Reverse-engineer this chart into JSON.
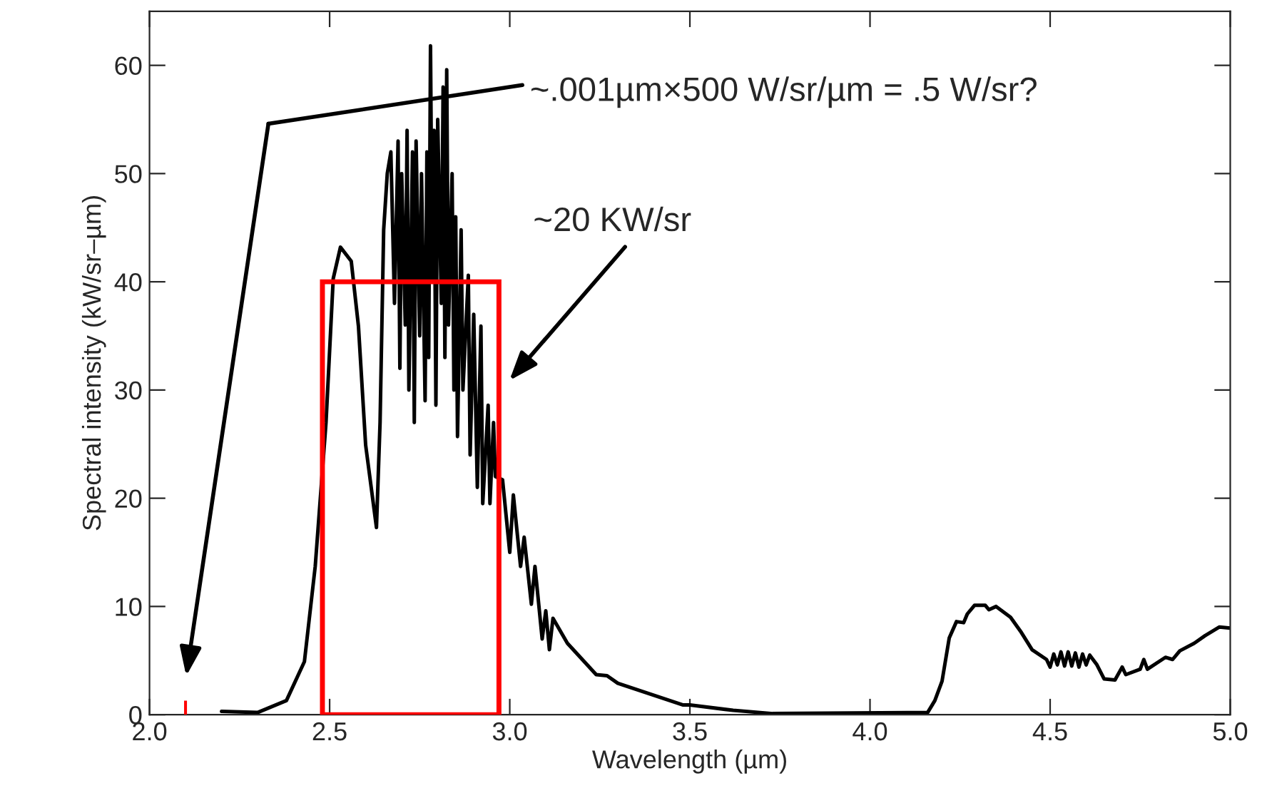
{
  "chart_data": {
    "type": "line",
    "xlabel": "Wavelength (µm)",
    "ylabel": "Spectral intensity (kW/sr–µm)",
    "xlim": [
      2.0,
      5.0
    ],
    "xticks": [
      {
        "value": 2.0,
        "label": "2.0"
      },
      {
        "value": 2.5,
        "label": "2.5"
      },
      {
        "value": 3.0,
        "label": "3.0"
      },
      {
        "value": 3.5,
        "label": "3.5"
      },
      {
        "value": 4.0,
        "label": "4.0"
      },
      {
        "value": 4.5,
        "label": "4.5"
      },
      {
        "value": 5.0,
        "label": "5.0"
      }
    ],
    "ylim": [
      0,
      65
    ],
    "yticks": [
      0,
      10,
      20,
      30,
      40,
      50,
      60
    ],
    "grid": false,
    "legend": false,
    "marker": "none",
    "line_style": "solid",
    "series": [
      {
        "color": "#000000",
        "x": [
          2.2,
          2.3,
          2.38,
          2.43,
          2.46,
          2.49,
          2.51,
          2.53,
          2.56,
          2.58,
          2.6,
          2.63,
          2.64,
          2.65,
          2.66,
          2.67,
          2.68,
          2.69,
          2.695,
          2.7,
          2.71,
          2.715,
          2.72,
          2.73,
          2.735,
          2.74,
          2.75,
          2.755,
          2.765,
          2.77,
          2.775,
          2.78,
          2.785,
          2.79,
          2.795,
          2.8,
          2.81,
          2.815,
          2.82,
          2.825,
          2.83,
          2.84,
          2.845,
          2.85,
          2.855,
          2.865,
          2.87,
          2.885,
          2.89,
          2.9,
          2.91,
          2.92,
          2.925,
          2.94,
          2.945,
          2.955,
          2.96,
          2.98,
          3.0,
          3.01,
          3.03,
          3.04,
          3.06,
          3.07,
          3.09,
          3.1,
          3.11,
          3.12,
          3.16,
          3.24,
          3.27,
          3.3,
          3.48,
          3.5,
          3.62,
          3.73,
          4.16,
          4.18,
          4.2,
          4.22,
          4.24,
          4.26,
          4.27,
          4.29,
          4.32,
          4.33,
          4.35,
          4.39,
          4.42,
          4.45,
          4.49,
          4.5,
          4.51,
          4.52,
          4.53,
          4.54,
          4.55,
          4.56,
          4.57,
          4.58,
          4.59,
          4.6,
          4.61,
          4.63,
          4.65,
          4.68,
          4.7,
          4.71,
          4.75,
          4.76,
          4.77,
          4.82,
          4.84,
          4.86,
          4.9,
          4.93,
          4.97,
          5.0
        ],
        "values": [
          0.3,
          0.2,
          1.3,
          4.9,
          13.7,
          27,
          40.3,
          43.2,
          41.9,
          35.9,
          24.9,
          17.3,
          27,
          44.8,
          50,
          52,
          38,
          53,
          32,
          50,
          36,
          54,
          30,
          52,
          27,
          53,
          35,
          50,
          29,
          52,
          33,
          61.8,
          40,
          54,
          28.6,
          55,
          38,
          58,
          33,
          59.6,
          36,
          50,
          30,
          46,
          25.7,
          44.8,
          30,
          40.6,
          24,
          37,
          21,
          35.9,
          19.5,
          28.6,
          19.5,
          27,
          22,
          21.7,
          15,
          20.3,
          13.7,
          16.4,
          10.2,
          13.7,
          7,
          9.6,
          6,
          8.9,
          6.6,
          3.7,
          3.6,
          2.9,
          0.9,
          0.9,
          0.4,
          0.1,
          0.2,
          1.3,
          3.1,
          7.1,
          8.6,
          8.5,
          9.3,
          10.1,
          10.1,
          9.7,
          10,
          9,
          7.6,
          6,
          5.1,
          4.4,
          5.6,
          4.6,
          5.8,
          4.5,
          5.8,
          4.5,
          5.7,
          4.4,
          5.6,
          4.6,
          5.5,
          4.6,
          3.3,
          3.2,
          4.4,
          3.7,
          4.2,
          5.1,
          4.2,
          5.3,
          5.1,
          5.9,
          6.6,
          7.3,
          8.1,
          8
        ]
      },
      {
        "type": "bar",
        "color": "#ff0000",
        "x": [
          2.1,
          2.725
        ],
        "values": [
          1.3,
          40
        ]
      }
    ],
    "annotations": [
      "~.001µm×500 W/sr/µm = .5 W/sr?",
      "~20 KW/sr"
    ]
  }
}
